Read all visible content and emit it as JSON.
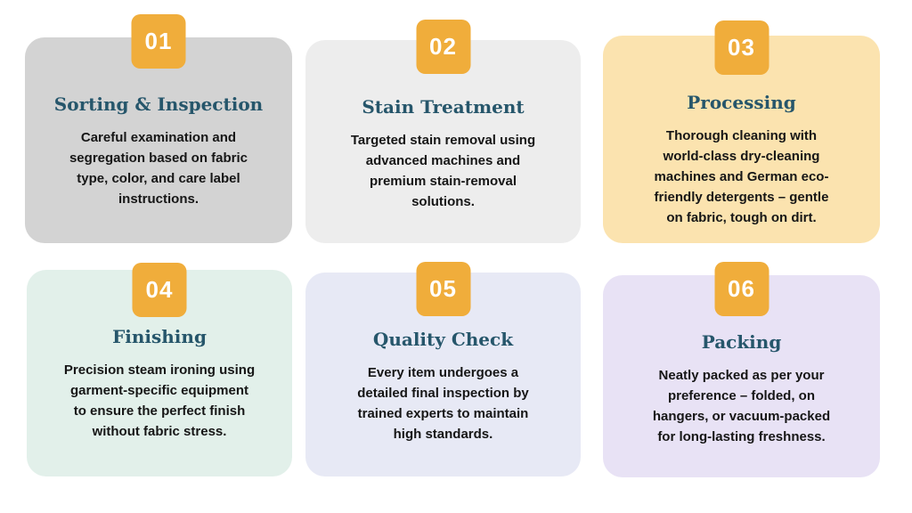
{
  "page": {
    "background": "#ffffff"
  },
  "accent": {
    "badge_bg": "#F0AD3B",
    "badge_text_color": "#FFFFFF",
    "title_color": "#26566B",
    "body_text_color": "#161616"
  },
  "cards": [
    {
      "number": "01",
      "title": "Sorting & Inspection",
      "description": "Careful examination and\nsegregation based on fabric\ntype, color, and care label\ninstructions.",
      "bg": "#D3D3D3"
    },
    {
      "number": "02",
      "title": "Stain Treatment",
      "description": "Targeted stain removal using\nadvanced machines and\npremium stain-removal\nsolutions.",
      "bg": "#EDEDED"
    },
    {
      "number": "03",
      "title": "Processing",
      "description": "Thorough cleaning with\nworld-class dry-cleaning\nmachines and German eco-\nfriendly detergents – gentle\non fabric, tough on dirt.",
      "bg": "#FBE3AF"
    },
    {
      "number": "04",
      "title": "Finishing",
      "description": "Precision steam ironing using\ngarment-specific equipment\nto ensure the perfect finish\nwithout fabric stress.",
      "bg": "#E2F0EA"
    },
    {
      "number": "05",
      "title": "Quality Check",
      "description": "Every item undergoes a\ndetailed final inspection by\ntrained experts to maintain\nhigh standards.",
      "bg": "#E7E9F5"
    },
    {
      "number": "06",
      "title": "Packing",
      "description": "Neatly packed as per your\npreference – folded, on\nhangers, or vacuum-packed\nfor long-lasting freshness.",
      "bg": "#E8E2F5"
    }
  ]
}
